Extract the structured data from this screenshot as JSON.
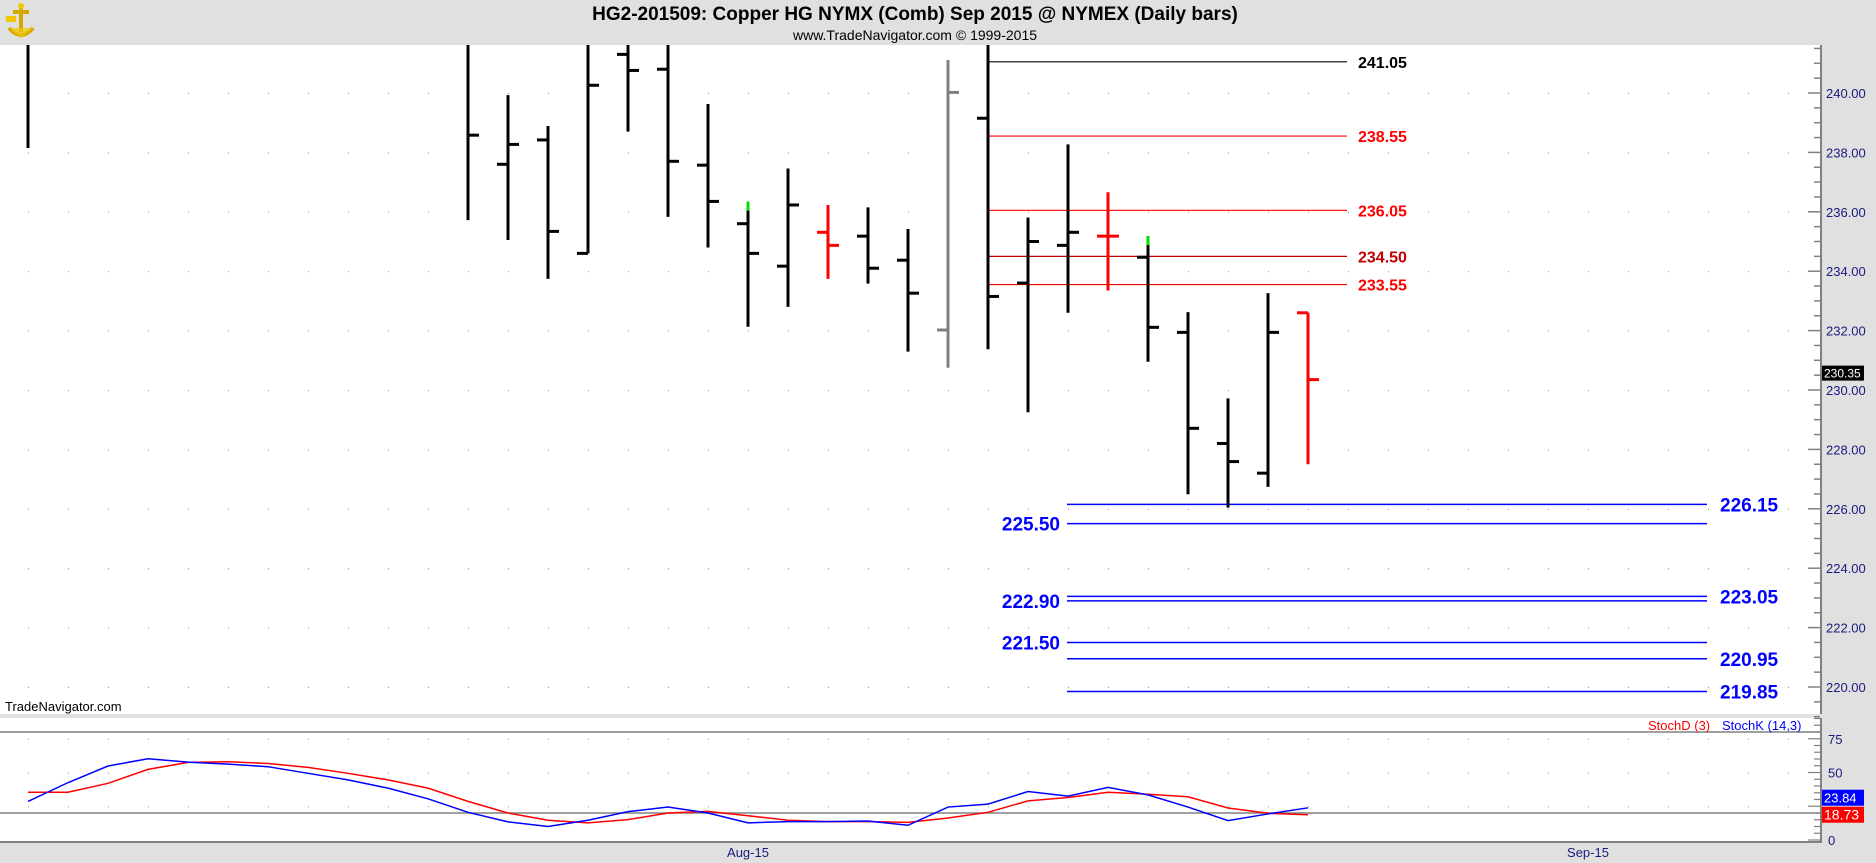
{
  "header": {
    "title": "HG2-201509:  Copper HG NYMX (Comb) Sep 2015 @ NYMEX  (Daily bars)",
    "subtitle": "www.TradeNavigator.com © 1999-2015",
    "logo_icon": "sextant-logo-icon"
  },
  "watermark": "TradeNavigator.com",
  "chart_data": [
    {
      "type": "ohlc",
      "title": "HG2-201509:  Copper HG NYMX (Comb) Sep 2015 @ NYMEX  (Daily bars)",
      "ylim": [
        219,
        241.6
      ],
      "y_ticks": [
        "240.00",
        "238.00",
        "236.00",
        "234.00",
        "232.00",
        "230.00",
        "228.00",
        "226.00",
        "224.00",
        "222.00",
        "220.00"
      ],
      "x_tick_labels": [
        {
          "label": "Aug-15",
          "bar": 18
        },
        {
          "label": "Sep-15",
          "bar": 39
        }
      ],
      "grid": "dotted",
      "last_price": "230.35",
      "bars": [
        {
          "bar": 0,
          "o": 242.0,
          "h": 242.5,
          "l": 238.15,
          "c": 241.9,
          "color": "#000000"
        },
        {
          "bar": 11,
          "o": 241.7,
          "h": 241.9,
          "l": 235.72,
          "c": 238.58,
          "color": "#000000"
        },
        {
          "bar": 12,
          "o": 237.6,
          "h": 239.93,
          "l": 235.05,
          "c": 238.27,
          "color": "#000000"
        },
        {
          "bar": 13,
          "o": 238.42,
          "h": 238.89,
          "l": 233.74,
          "c": 235.34,
          "color": "#000000"
        },
        {
          "bar": 14,
          "o": 234.6,
          "h": 241.9,
          "l": 234.6,
          "c": 240.26,
          "color": "#000000"
        },
        {
          "bar": 15,
          "o": 241.3,
          "h": 241.9,
          "l": 238.7,
          "c": 240.76,
          "color": "#000000"
        },
        {
          "bar": 16,
          "o": 240.8,
          "h": 241.9,
          "l": 235.83,
          "c": 237.7,
          "color": "#000000"
        },
        {
          "bar": 17,
          "o": 237.57,
          "h": 239.63,
          "l": 234.8,
          "c": 236.35,
          "color": "#000000"
        },
        {
          "bar": 18,
          "o": 235.6,
          "h": 236.34,
          "l": 232.13,
          "c": 234.6,
          "color": "#000000",
          "tip": "#00e000"
        },
        {
          "bar": 19,
          "o": 234.17,
          "h": 237.46,
          "l": 232.8,
          "c": 236.23,
          "color": "#000000"
        },
        {
          "bar": 20,
          "o": 235.31,
          "h": 236.23,
          "l": 233.74,
          "c": 234.87,
          "color": "#ff0000"
        },
        {
          "bar": 21,
          "o": 235.18,
          "h": 236.15,
          "l": 233.58,
          "c": 234.1,
          "color": "#000000"
        },
        {
          "bar": 22,
          "o": 234.37,
          "h": 235.42,
          "l": 231.29,
          "c": 233.26,
          "color": "#000000"
        },
        {
          "bar": 23,
          "o": 232.02,
          "h": 241.11,
          "l": 230.75,
          "c": 240.02,
          "color": "#808080"
        },
        {
          "bar": 24,
          "o": 239.15,
          "h": 241.9,
          "l": 231.37,
          "c": 233.15,
          "color": "#000000"
        },
        {
          "bar": 25,
          "o": 233.6,
          "h": 235.81,
          "l": 229.25,
          "c": 235.0,
          "color": "#000000"
        },
        {
          "bar": 26,
          "o": 234.87,
          "h": 238.27,
          "l": 232.6,
          "c": 235.31,
          "color": "#000000"
        },
        {
          "bar": 27,
          "o": 235.18,
          "h": 236.66,
          "l": 233.35,
          "c": 235.18,
          "color": "#ff0000"
        },
        {
          "bar": 28,
          "o": 234.47,
          "h": 235.18,
          "l": 230.95,
          "c": 232.11,
          "color": "#000000",
          "tip": "#00e000"
        },
        {
          "bar": 29,
          "o": 231.94,
          "h": 232.62,
          "l": 226.49,
          "c": 228.71,
          "color": "#000000"
        },
        {
          "bar": 30,
          "o": 228.2,
          "h": 229.72,
          "l": 226.04,
          "c": 227.59,
          "color": "#000000"
        },
        {
          "bar": 31,
          "o": 227.2,
          "h": 233.26,
          "l": 226.74,
          "c": 231.94,
          "color": "#000000"
        },
        {
          "bar": 32,
          "o": 232.6,
          "h": 232.6,
          "l": 227.5,
          "c": 230.35,
          "color": "#ff0000"
        }
      ],
      "levels": [
        {
          "value": 241.05,
          "label": "241.05",
          "color": "#000000",
          "side": "right",
          "group": "upper"
        },
        {
          "value": 238.55,
          "label": "238.55",
          "color": "#ff0000",
          "side": "right",
          "group": "upper"
        },
        {
          "value": 236.05,
          "label": "236.05",
          "color": "#ff0000",
          "side": "right",
          "group": "upper"
        },
        {
          "value": 234.5,
          "label": "234.50",
          "color": "#c00000",
          "side": "right",
          "group": "upper"
        },
        {
          "value": 233.55,
          "label": "233.55",
          "color": "#ff0000",
          "side": "right",
          "group": "upper"
        },
        {
          "value": 226.15,
          "label": "226.15",
          "color": "#0000ff",
          "side": "right",
          "group": "lower"
        },
        {
          "value": 225.5,
          "label": "225.50",
          "color": "#0000ff",
          "side": "left",
          "group": "lower"
        },
        {
          "value": 223.05,
          "label": "223.05",
          "color": "#0000ff",
          "side": "right",
          "group": "lower"
        },
        {
          "value": 222.9,
          "label": "222.90",
          "color": "#0000ff",
          "side": "left",
          "group": "lower"
        },
        {
          "value": 221.5,
          "label": "221.50",
          "color": "#0000ff",
          "side": "left",
          "group": "lower"
        },
        {
          "value": 220.95,
          "label": "220.95",
          "color": "#0000ff",
          "side": "right",
          "group": "lower"
        },
        {
          "value": 219.85,
          "label": "219.85",
          "color": "#0000ff",
          "side": "right",
          "group": "lower"
        }
      ]
    },
    {
      "type": "line",
      "ylim": [
        0,
        100
      ],
      "y_ticks": [
        "75",
        "50",
        "0"
      ],
      "reference_lines": [
        80,
        20
      ],
      "series": [
        {
          "name": "StochD (3)",
          "color": "#ff0000",
          "last_label": "18.73",
          "values": [
            35.4,
            35.4,
            42,
            52.3,
            57.5,
            58,
            56.7,
            53.8,
            49.4,
            44.5,
            38.4,
            28.6,
            20,
            14.6,
            12.7,
            15.1,
            20,
            21.2,
            18,
            14.6,
            13.6,
            13.6,
            13.1,
            16.3,
            20.5,
            29,
            31.5,
            35.4,
            33.9,
            32,
            23.7,
            19.8,
            18.73
          ]
        },
        {
          "name": "StochK (14,3)",
          "color": "#0000ff",
          "last_label": "23.84",
          "values": [
            28.6,
            42.5,
            54.8,
            60.2,
            57.7,
            56.2,
            54.3,
            49.4,
            44.5,
            38.4,
            30.5,
            20.5,
            13.4,
            10,
            14.6,
            21,
            24.4,
            20,
            12.7,
            13.6,
            13.6,
            14.1,
            10.9,
            24.4,
            26.6,
            35.9,
            32.5,
            39,
            33.4,
            24.4,
            14.4,
            19.3,
            23.84
          ]
        }
      ]
    }
  ]
}
